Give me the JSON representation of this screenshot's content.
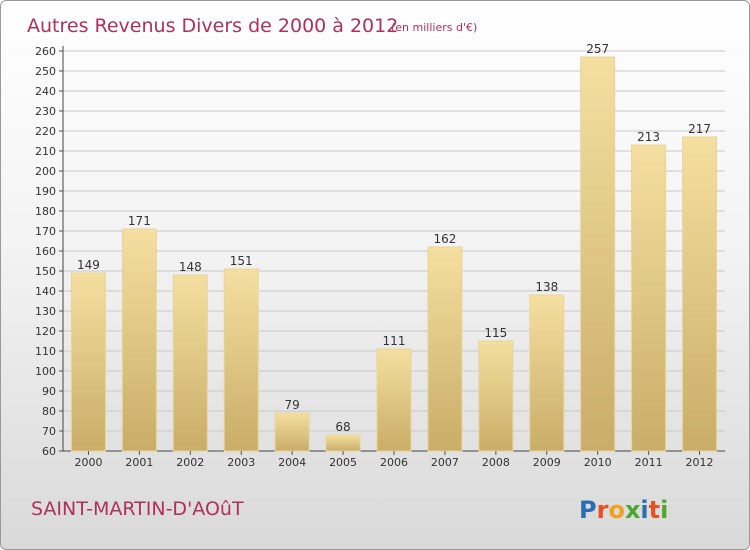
{
  "title": "Autres Revenus Divers de 2000 à 2012",
  "subtitle": "(en milliers d'€)",
  "commune": "SAINT-MARTIN-D'AOûT",
  "logo": {
    "text": "Proxiti",
    "letters": [
      {
        "ch": "P",
        "color": "#2a6fb6"
      },
      {
        "ch": "r",
        "color": "#e8511f"
      },
      {
        "ch": "o",
        "color": "#f0a21f"
      },
      {
        "ch": "x",
        "color": "#4ea72e"
      },
      {
        "ch": "i",
        "color": "#2a6fb6"
      },
      {
        "ch": "t",
        "color": "#e8511f"
      },
      {
        "ch": "i",
        "color": "#4ea72e"
      }
    ]
  },
  "colors": {
    "title": "#b0305b",
    "bar_light": "#f5dfa0",
    "bar_dark": "#c9ad68",
    "grid": "#c8c8c8"
  },
  "chart_data": {
    "type": "bar",
    "categories": [
      "2000",
      "2001",
      "2002",
      "2003",
      "2004",
      "2005",
      "2006",
      "2007",
      "2008",
      "2009",
      "2010",
      "2011",
      "2012"
    ],
    "values": [
      149,
      171,
      148,
      151,
      79,
      68,
      111,
      162,
      115,
      138,
      257,
      213,
      217
    ],
    "ylim": [
      60,
      260
    ],
    "ytick_step": 10,
    "grid": true,
    "xlabel": "",
    "ylabel": ""
  }
}
